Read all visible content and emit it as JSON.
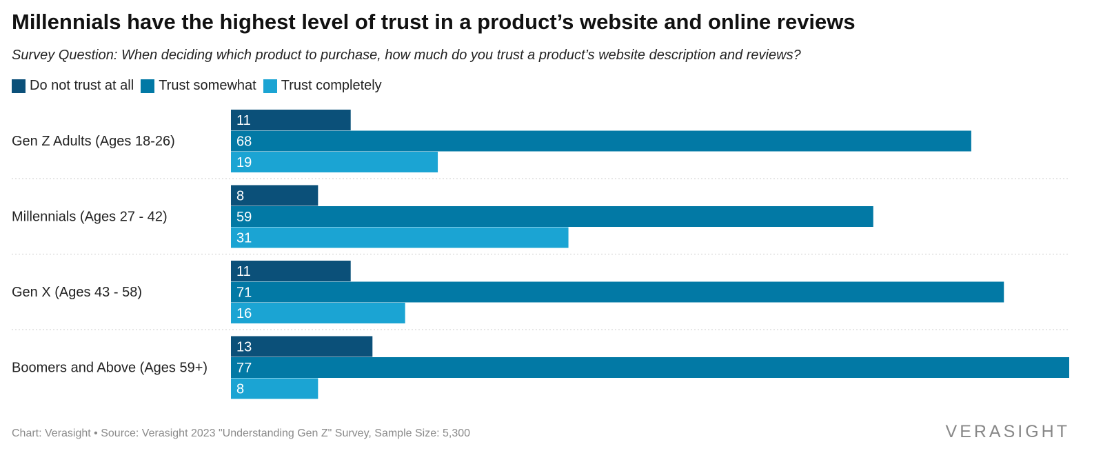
{
  "colors": {
    "do_not_trust": "#0b5079",
    "trust_somewhat": "#0279a5",
    "trust_completely": "#1ba4d3",
    "separator": "#cccccc"
  },
  "chart_data": {
    "type": "bar",
    "orientation": "horizontal",
    "title": "Millennials have the highest level of trust in a product’s website and online reviews",
    "subtitle": "Survey Question: When deciding which product to purchase, how much do you trust a product’s website description and reviews?",
    "legend_position": "top-left",
    "grid": false,
    "xlim": [
      0,
      77
    ],
    "categories": [
      "Gen Z Adults (Ages 18-26)",
      "Millennials (Ages 27 - 42)",
      "Gen X (Ages 43 - 58)",
      "Boomers and Above (Ages 59+)"
    ],
    "series": [
      {
        "name": "Do not trust at all",
        "values": [
          11,
          8,
          11,
          13
        ]
      },
      {
        "name": "Trust somewhat",
        "values": [
          68,
          59,
          71,
          77
        ]
      },
      {
        "name": "Trust completely",
        "values": [
          19,
          31,
          16,
          8
        ]
      }
    ]
  },
  "footer": {
    "source": "Chart: Verasight • Source: Verasight 2023 \"Understanding Gen Z\" Survey, Sample Size: 5,300",
    "logo": "VERASIGHT"
  }
}
